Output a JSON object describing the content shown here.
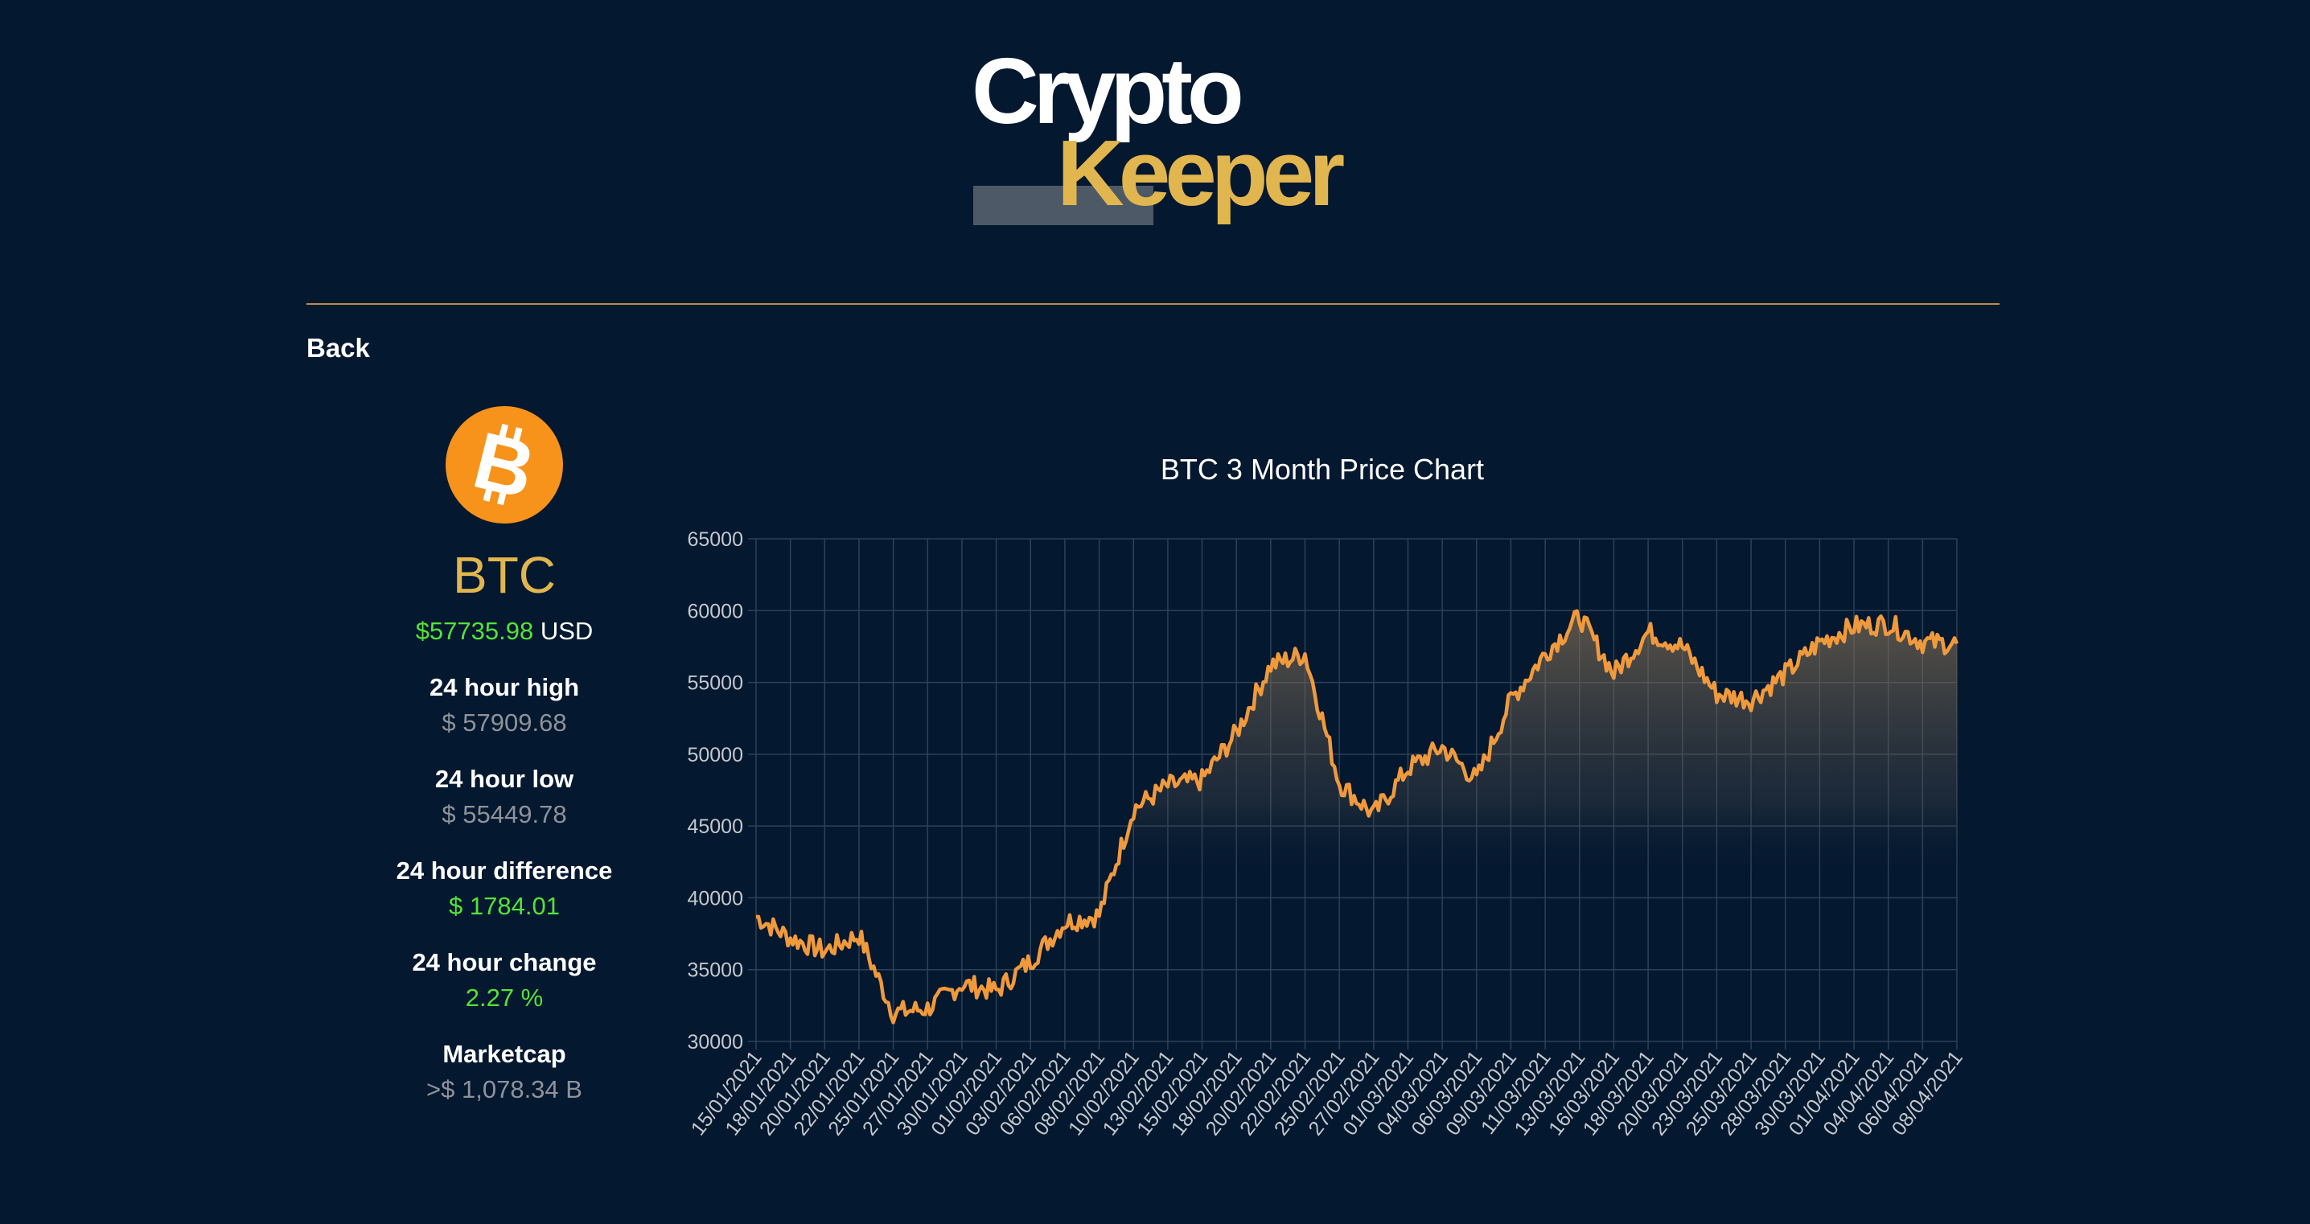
{
  "brand": {
    "word1": "Crypto",
    "word2": "Keeper",
    "accent": "#e1b64f",
    "background": "#041830"
  },
  "nav": {
    "back_label": "Back"
  },
  "coin": {
    "icon": "bitcoin-icon",
    "icon_color": "#f7931a",
    "symbol": "BTC",
    "price": "$57735.98",
    "currency": "USD",
    "stats": [
      {
        "label": "24 hour high",
        "value": "$ 57909.68",
        "tone": "muted"
      },
      {
        "label": "24 hour low",
        "value": "$ 55449.78",
        "tone": "muted"
      },
      {
        "label": "24 hour difference",
        "value": "$ 1784.01",
        "tone": "positive"
      },
      {
        "label": "24 hour change",
        "value": "2.27 %",
        "tone": "positive"
      },
      {
        "label": "Marketcap",
        "value": ">$ 1,078.34 B",
        "tone": "muted"
      }
    ]
  },
  "chart_data": {
    "type": "line",
    "title": "BTC 3 Month Price Chart",
    "xlabel": "",
    "ylabel": "",
    "ylim": [
      30000,
      65000
    ],
    "yticks": [
      30000,
      35000,
      40000,
      45000,
      50000,
      55000,
      60000,
      65000
    ],
    "grid": true,
    "legend": "none",
    "line_color": "#f19a3c",
    "x": [
      "15/01/2021",
      "18/01/2021",
      "20/01/2021",
      "22/01/2021",
      "25/01/2021",
      "27/01/2021",
      "30/01/2021",
      "01/02/2021",
      "03/02/2021",
      "06/02/2021",
      "08/02/2021",
      "10/02/2021",
      "13/02/2021",
      "15/02/2021",
      "18/02/2021",
      "20/02/2021",
      "22/02/2021",
      "25/02/2021",
      "27/02/2021",
      "01/03/2021",
      "04/03/2021",
      "06/03/2021",
      "09/03/2021",
      "11/03/2021",
      "13/03/2021",
      "16/03/2021",
      "18/03/2021",
      "20/03/2021",
      "23/03/2021",
      "25/03/2021",
      "28/03/2021",
      "30/03/2021",
      "01/04/2021",
      "04/04/2021",
      "06/04/2021",
      "08/04/2021"
    ],
    "series": [
      {
        "values": [
          38700,
          37200,
          36300,
          37400,
          32000,
          32300,
          34000,
          33500,
          35600,
          38300,
          38800,
          46200,
          47800,
          48200,
          51500,
          56200,
          57000,
          48000,
          45800,
          49000,
          50500,
          48200,
          53800,
          57000,
          59600,
          55600,
          58500,
          57500,
          54200,
          53800,
          55600,
          57800,
          58900,
          59100,
          57800,
          57700
        ]
      }
    ]
  }
}
